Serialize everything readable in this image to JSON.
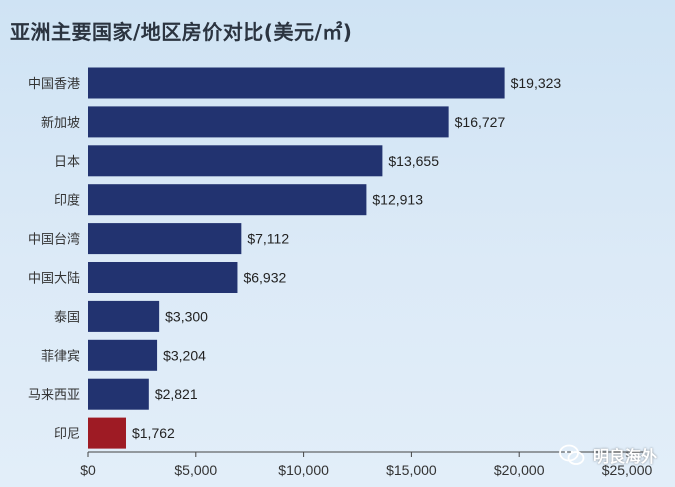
{
  "title": "亚洲主要国家/地区房价对比(美元/㎡)",
  "watermark": "明良海外",
  "colors": {
    "bar": "#223370",
    "highlight": "#9e1b24",
    "axis": "#444444"
  },
  "chart_data": {
    "type": "bar",
    "orientation": "horizontal",
    "title": "亚洲主要国家/地区房价对比(美元/㎡)",
    "categories": [
      "中国香港",
      "新加坡",
      "日本",
      "印度",
      "中国台湾",
      "中国大陆",
      "泰国",
      "菲律宾",
      "马来西亚",
      "印尼"
    ],
    "values": [
      19323,
      16727,
      13655,
      12913,
      7112,
      6932,
      3300,
      3204,
      2821,
      1762
    ],
    "value_labels": [
      "$19,323",
      "$16,727",
      "$13,655",
      "$12,913",
      "$7,112",
      "$6,932",
      "$3,300",
      "$3,204",
      "$2,821",
      "$1,762"
    ],
    "highlight_category": "印尼",
    "xlim": [
      0,
      25000
    ],
    "xticks": [
      0,
      5000,
      10000,
      15000,
      20000,
      25000
    ],
    "xtick_labels": [
      "$0",
      "$5,000",
      "$10,000",
      "$15,000",
      "$20,000",
      "$25,000"
    ],
    "grid": false,
    "legend": "none"
  }
}
